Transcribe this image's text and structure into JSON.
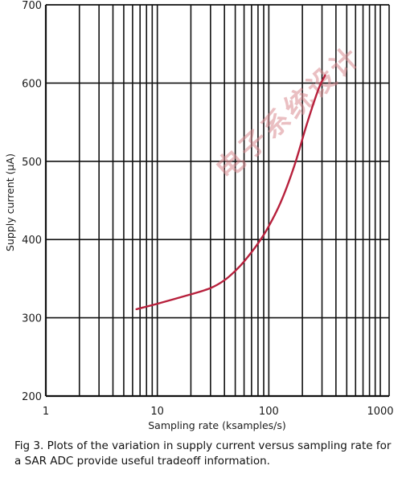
{
  "chart_data": {
    "type": "line",
    "xscale": "log",
    "xlim": [
      1,
      1200
    ],
    "ylim": [
      200,
      700
    ],
    "xticks": [
      1,
      10,
      100,
      1000
    ],
    "xtick_labels": [
      "1",
      "10",
      "100",
      "1000"
    ],
    "yticks": [
      200,
      300,
      400,
      500,
      600,
      700
    ],
    "ytick_labels": [
      "200",
      "300",
      "400",
      "500",
      "600",
      "700"
    ],
    "xlabel": "Sampling rate (ksamples/s)",
    "ylabel": "Supply current (µA)",
    "grid": true,
    "series": [
      {
        "color": "#b7203c",
        "x": [
          6.5,
          10,
          20,
          30,
          40,
          50,
          60,
          80,
          100,
          130,
          170,
          220,
          280,
          320
        ],
        "y": [
          311,
          318,
          330,
          338,
          348,
          360,
          372,
          395,
          417,
          450,
          495,
          548,
          593,
          610
        ]
      }
    ]
  },
  "caption": "Fig 3. Plots of the variation in supply current versus sampling rate for a SAR ADC provide useful tradeoff information.",
  "watermark": "电子系统设计"
}
